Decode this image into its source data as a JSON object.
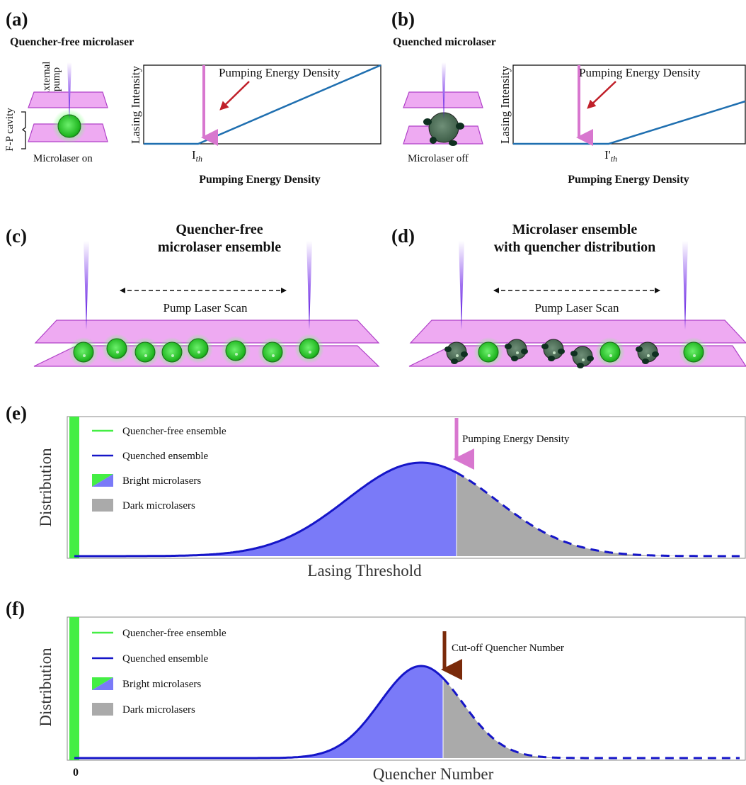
{
  "panel_a": {
    "label": "(a)",
    "title": "Quencher-free microlaser",
    "pump_label": [
      "External",
      "pump"
    ],
    "cavity_label": "F-P cavity",
    "state": "Microlaser on",
    "y_label": "Lasing Intensity",
    "annotation": "Pumping Energy Density",
    "threshold": {
      "main": "I",
      "sub": "th"
    },
    "x_label": "Pumping Energy Density"
  },
  "panel_b": {
    "label": "(b)",
    "title": "Quenched microlaser",
    "state": "Microlaser off",
    "y_label": "Lasing Intensity",
    "annotation": "Pumping Energy Density",
    "threshold": {
      "main": "I'",
      "sub": "th"
    },
    "x_label": "Pumping Energy Density"
  },
  "panel_c": {
    "label": "(c)",
    "title": [
      "Quencher-free",
      "microlaser ensemble"
    ],
    "scan": "Pump Laser Scan"
  },
  "panel_d": {
    "label": "(d)",
    "title": [
      "Microlaser ensemble",
      "with quencher distribution"
    ],
    "scan": "Pump Laser Scan"
  },
  "panel_e": {
    "label": "(e)",
    "legend": [
      "Quencher-free ensemble",
      "Quenched ensemble",
      "Bright microlasers",
      "Dark microlasers"
    ],
    "y_label": "Distribution",
    "annotation": "Pumping Energy Density",
    "x_label": "Lasing Threshold"
  },
  "panel_f": {
    "label": "(f)",
    "legend": [
      "Quencher-free ensemble",
      "Quenched ensemble",
      "Bright microlasers",
      "Dark microlasers"
    ],
    "y_label": "Distribution",
    "annotation": "Cut-off Quencher Number",
    "origin": "0",
    "x_label": "Quencher Number"
  }
}
